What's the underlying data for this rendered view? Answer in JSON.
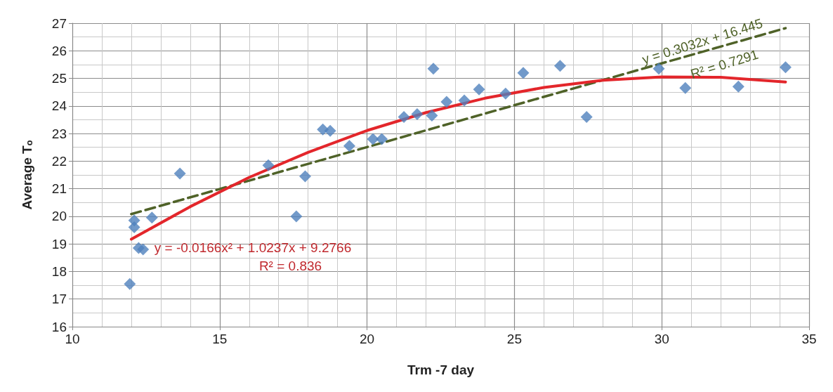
{
  "chart_data": {
    "type": "scatter",
    "xlabel": "Trm -7 day",
    "ylabel": "Average Tₒ",
    "xlim": [
      10,
      35
    ],
    "xticks": [
      10,
      15,
      20,
      25,
      30,
      35
    ],
    "ylim": [
      16,
      27
    ],
    "yticks": [
      16,
      17,
      18,
      19,
      20,
      21,
      22,
      23,
      24,
      25,
      26,
      27
    ],
    "grid": true,
    "series": [
      {
        "marker": "diamond",
        "color": "#4f81bd",
        "x": [
          11.95,
          12.1,
          12.1,
          12.25,
          12.4,
          12.7,
          13.65,
          16.65,
          17.6,
          17.9,
          18.5,
          18.75,
          19.4,
          20.2,
          20.5,
          21.25,
          21.7,
          22.2,
          22.25,
          22.7,
          23.3,
          23.8,
          24.7,
          25.3,
          26.55,
          27.45,
          29.9,
          30.8,
          32.6,
          34.2
        ],
        "values": [
          17.55,
          19.85,
          19.6,
          18.85,
          18.8,
          19.95,
          21.55,
          21.85,
          20.0,
          21.45,
          23.15,
          23.1,
          22.55,
          22.8,
          22.8,
          23.6,
          23.7,
          23.65,
          25.35,
          24.15,
          24.2,
          24.6,
          24.45,
          25.2,
          25.45,
          23.6,
          25.35,
          24.65,
          24.7,
          25.4
        ]
      },
      {
        "type": "line",
        "marker": "none",
        "line_style": "dashed",
        "color": "#4f6228",
        "x": [
          12,
          34.2
        ],
        "values": [
          20.08,
          26.82
        ]
      },
      {
        "type": "line",
        "marker": "none",
        "line_style": "solid",
        "color": "#e3262b",
        "x": [
          12,
          14,
          16,
          18,
          20,
          22,
          24,
          26,
          28,
          30,
          32,
          34.2
        ],
        "values": [
          19.17,
          20.35,
          21.41,
          22.32,
          23.11,
          23.76,
          24.28,
          24.67,
          24.93,
          25.05,
          25.04,
          24.87
        ]
      }
    ],
    "annotations": [
      "y = 0.3032x + 16.445",
      "R² = 0.7291",
      "y = -0.0166x² + 1.0237x + 9.2766",
      "R² = 0.836"
    ]
  }
}
